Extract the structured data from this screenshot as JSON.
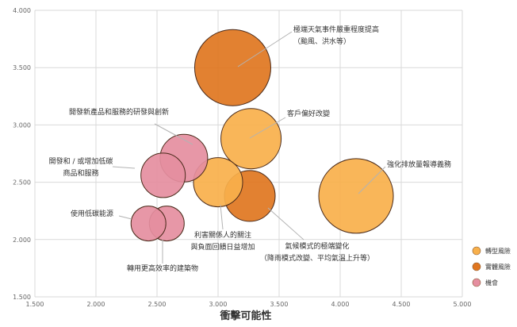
{
  "chart_data": {
    "type": "bubble",
    "xlabel": "衝擊可能性",
    "ylabel": "",
    "xlim": [
      1.5,
      5.0
    ],
    "ylim": [
      1.5,
      4.0
    ],
    "xticks": [
      "1.500",
      "2.000",
      "2.500",
      "3.000",
      "3.500",
      "4.000",
      "4.500",
      "5.000"
    ],
    "yticks": [
      "1.500",
      "2.000",
      "2.500",
      "3.000",
      "3.500",
      "4.000"
    ],
    "grid": true,
    "legend_position": "right",
    "series": [
      {
        "name": "轉型風險",
        "color": "#f8b04b"
      },
      {
        "name": "實體風險",
        "color": "#e0761f"
      },
      {
        "name": "機會",
        "color": "#e58ea0"
      }
    ],
    "points": [
      {
        "series": 1,
        "x": 3.12,
        "y": 3.5,
        "size": 48,
        "label_lines": [
          "極端天氣事件嚴重程度提高",
          "（颱風、洪水等）"
        ]
      },
      {
        "series": 0,
        "x": 3.27,
        "y": 2.88,
        "size": 38,
        "label_lines": [
          "客戶偏好改變"
        ]
      },
      {
        "series": 0,
        "x": 4.13,
        "y": 2.38,
        "size": 47,
        "label_lines": [
          "強化排放量報導義務"
        ]
      },
      {
        "series": 2,
        "x": 2.72,
        "y": 2.71,
        "size": 30,
        "label_lines": [
          "開發新產品和服務的研發與創新"
        ]
      },
      {
        "series": 2,
        "x": 2.55,
        "y": 2.56,
        "size": 28,
        "label_lines": [
          "開發和 / 或增加低碳",
          "商品和服務"
        ]
      },
      {
        "series": 0,
        "x": 3.0,
        "y": 2.5,
        "size": 31,
        "label_lines": [
          "利害關係人的關注",
          "與負面回饋日益增加"
        ]
      },
      {
        "series": 1,
        "x": 3.26,
        "y": 2.38,
        "size": 32,
        "label_lines": [
          "氣候模式的極端變化",
          "（降雨模式改變、平均氣溫上升等）"
        ]
      },
      {
        "series": 2,
        "x": 2.58,
        "y": 2.14,
        "size": 22,
        "label_lines": [
          "轉用更高效率的建築物"
        ]
      },
      {
        "series": 2,
        "x": 2.43,
        "y": 2.14,
        "size": 22,
        "label_lines": [
          "使用低碳能源"
        ]
      }
    ]
  }
}
